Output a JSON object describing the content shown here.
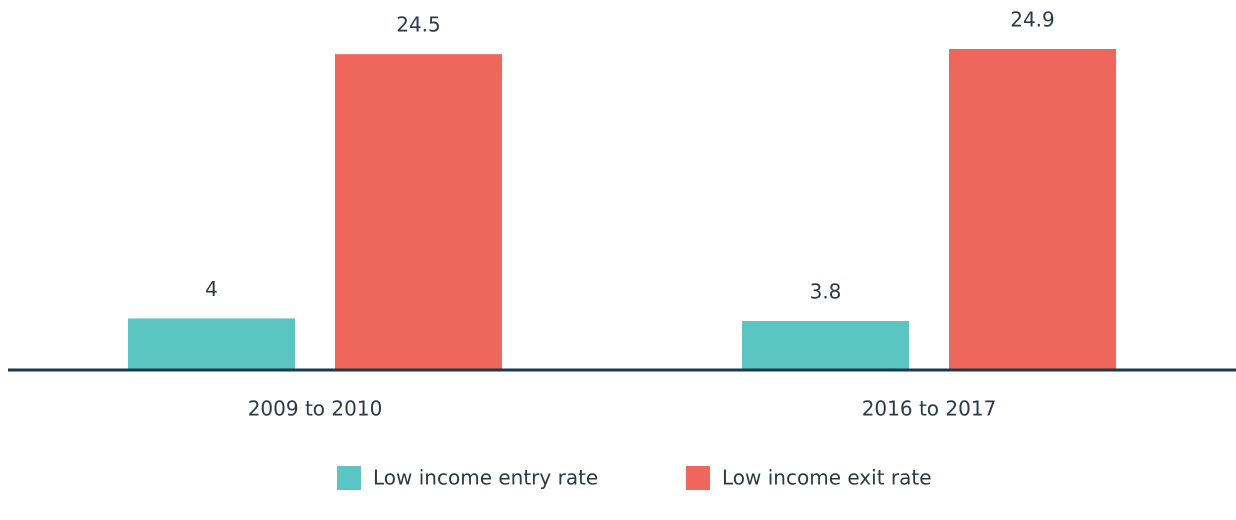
{
  "chart_data": {
    "type": "bar",
    "categories": [
      "2009 to 2010",
      "2016 to 2017"
    ],
    "series": [
      {
        "name": "Low income entry rate",
        "color": "#5bc5c4",
        "values": [
          4,
          3.8
        ]
      },
      {
        "name": "Low income exit rate",
        "color": "#ef665d",
        "values": [
          24.5,
          24.9
        ]
      }
    ]
  }
}
